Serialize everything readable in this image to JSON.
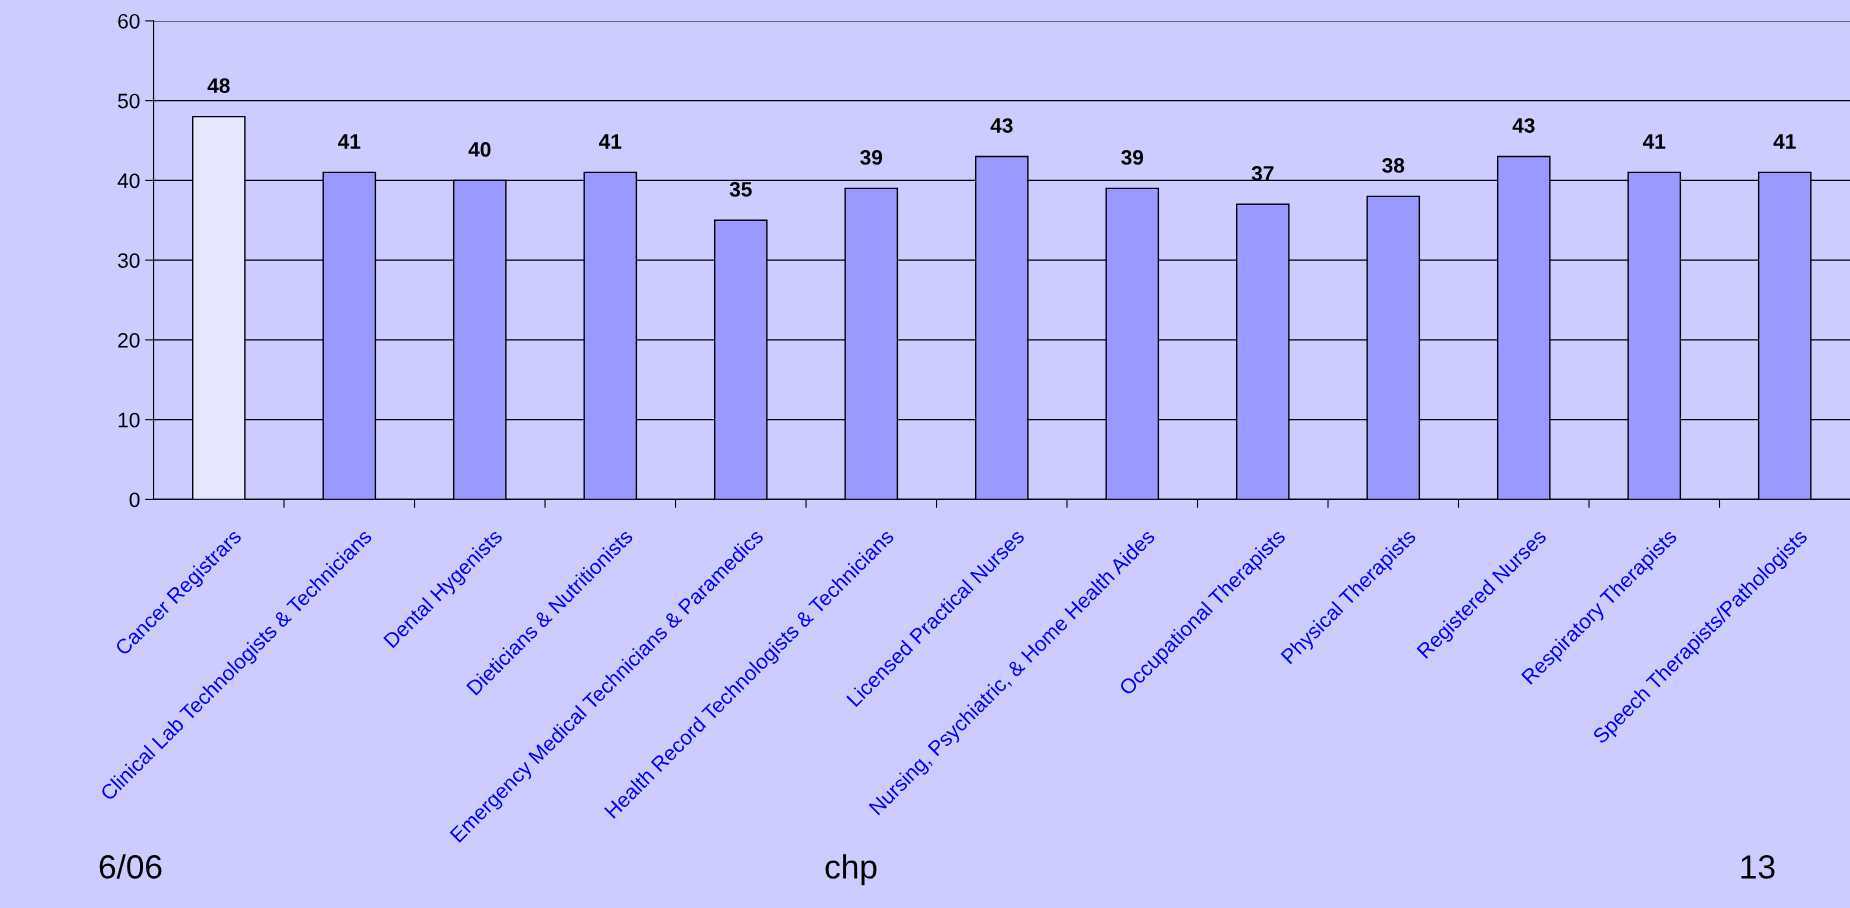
{
  "chart_data": {
    "type": "bar",
    "categories": [
      "Cancer Registrars",
      "Clinical Lab Technologists & Technicians",
      "Dental Hygenists",
      "Dieticians & Nutritionists",
      "Emergency Medical Technicians & Paramedics",
      "Health Record Technologists & Technicians",
      "Licensed Practical Nurses",
      "Nursing, Psychiatric, & Home Health Aides",
      "Occupational Therapists",
      "Physical Therapists",
      "Registered Nurses",
      "Respiratory Therapists",
      "Speech Therapists/Pathologists"
    ],
    "values": [
      48,
      41,
      40,
      41,
      35,
      39,
      43,
      39,
      37,
      38,
      43,
      41,
      41
    ],
    "colors": [
      "#e6e6ff",
      "#9999ff",
      "#9999ff",
      "#9999ff",
      "#9999ff",
      "#9999ff",
      "#9999ff",
      "#9999ff",
      "#9999ff",
      "#9999ff",
      "#9999ff",
      "#9999ff",
      "#9999ff"
    ],
    "ylim": [
      0,
      60
    ],
    "yticks": [
      0,
      10,
      20,
      30,
      40,
      50,
      60
    ],
    "grid": "y",
    "data_labels": true,
    "annotations": [
      "6/06",
      "chp",
      "13"
    ]
  }
}
